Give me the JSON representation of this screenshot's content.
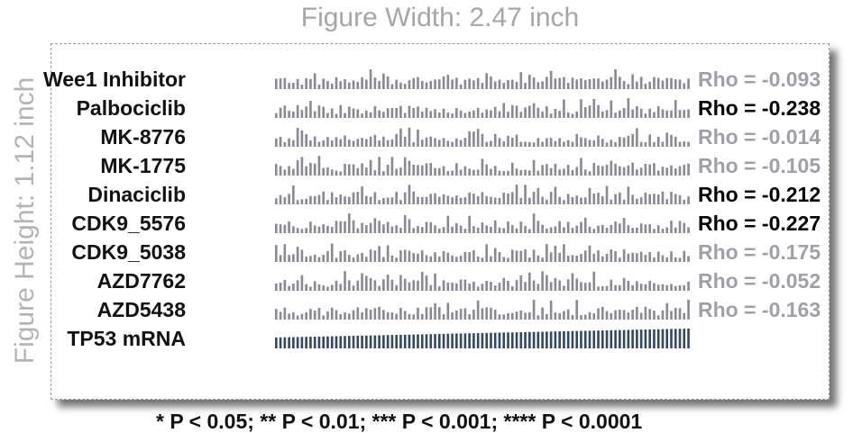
{
  "header": {
    "figure_width": "Figure Width: 2.47 inch"
  },
  "sidebar": {
    "figure_height": "Figure Height: 1.12 inch"
  },
  "footnote": "* P < 0.05; ** P < 0.01; *** P < 0.001; **** P < 0.0001",
  "colors": {
    "significant": "#000000",
    "non_significant": "#a09fa7",
    "drug_bars": "#8a8992",
    "tp53_bars": "#34495e"
  },
  "chart_data": {
    "type": "bar",
    "layout": "sparkline-strips",
    "n_samples": 97,
    "rows": [
      {
        "name": "Wee1 Inhibitor",
        "rho": "Rho = -0.093",
        "significant": false
      },
      {
        "name": "Palbociclib",
        "rho": "Rho = -0.238",
        "significant": true
      },
      {
        "name": "MK-8776",
        "rho": "Rho = -0.014",
        "significant": false
      },
      {
        "name": "MK-1775",
        "rho": "Rho = -0.105",
        "significant": false
      },
      {
        "name": "Dinaciclib",
        "rho": "Rho = -0.212",
        "significant": true
      },
      {
        "name": "CDK9_5576",
        "rho": "Rho = -0.227",
        "significant": true
      },
      {
        "name": "CDK9_5038",
        "rho": "Rho = -0.175",
        "significant": false
      },
      {
        "name": "AZD7762",
        "rho": "Rho = -0.052",
        "significant": false
      },
      {
        "name": "AZD5438",
        "rho": "Rho = -0.163",
        "significant": false
      }
    ],
    "reference": {
      "name": "TP53 mRNA",
      "trend": "increasing",
      "range": [
        0.55,
        1.0
      ]
    }
  }
}
